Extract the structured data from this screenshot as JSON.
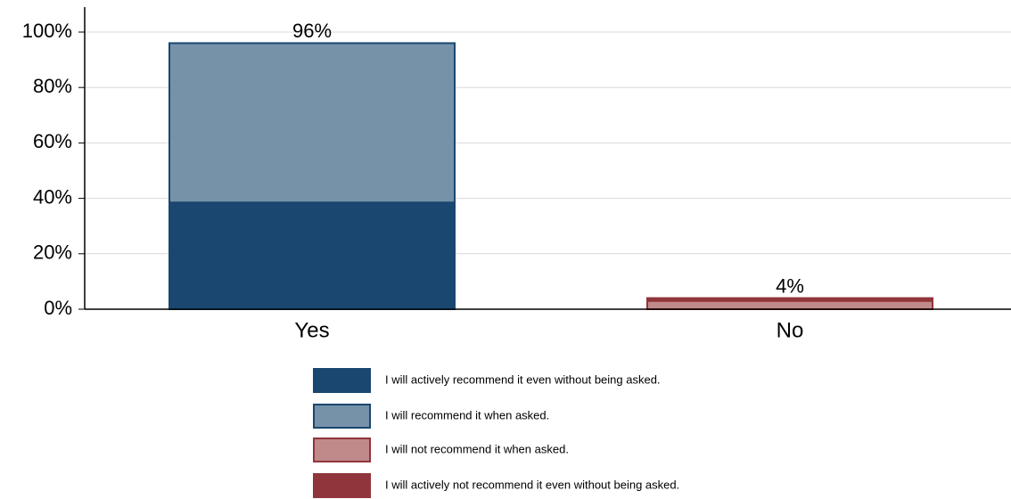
{
  "chart_data": {
    "type": "stacked_bar",
    "categories": [
      "Yes",
      "No"
    ],
    "series": [
      {
        "name": "I will actively recommend it even without being asked.",
        "color": "#1a476f",
        "edge": "#1a476f",
        "values": [
          38.5,
          0
        ]
      },
      {
        "name": "I will recommend it when asked.",
        "color": "#7692a9",
        "edge": "#1a476f",
        "values": [
          57.5,
          0
        ]
      },
      {
        "name": "I will not recommend it when asked.",
        "color": "#c08a8a",
        "edge": "#90353b",
        "values": [
          0,
          3
        ]
      },
      {
        "name": "I will actively not recommend it even without being asked.",
        "color": "#90353b",
        "edge": "#90353b",
        "values": [
          0,
          1
        ]
      }
    ],
    "totals": [
      96,
      4
    ],
    "total_labels": [
      "96%",
      "4%"
    ],
    "ylim": [
      0,
      109
    ],
    "yticks": [
      {
        "value": 0,
        "label": "0%"
      },
      {
        "value": 20,
        "label": "20%"
      },
      {
        "value": 40,
        "label": "40%"
      },
      {
        "value": 60,
        "label": "60%"
      },
      {
        "value": 80,
        "label": "80%"
      },
      {
        "value": 100,
        "label": "100%"
      }
    ],
    "grid": true
  }
}
